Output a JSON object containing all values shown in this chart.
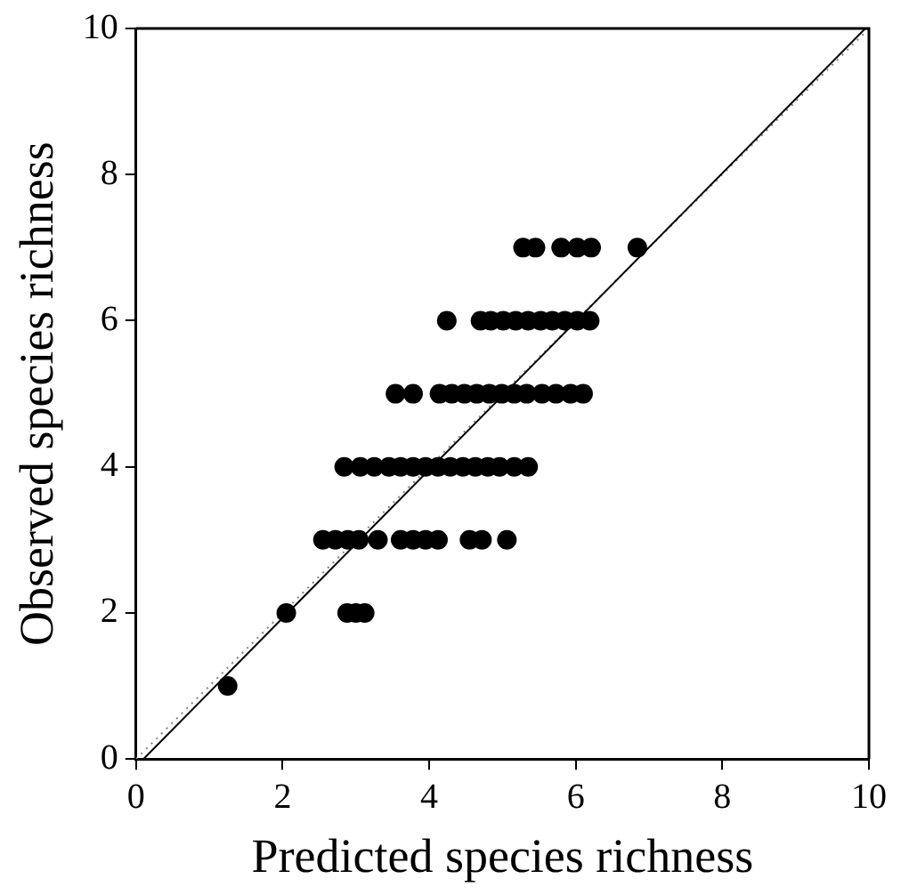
{
  "chart_data": {
    "type": "scatter",
    "xlabel": "Predicted species richness",
    "ylabel": "Observed species richness",
    "xlim": [
      0,
      10
    ],
    "ylim": [
      0,
      10
    ],
    "xticks": [
      0,
      2,
      4,
      6,
      8,
      10
    ],
    "yticks": [
      0,
      2,
      4,
      6,
      8,
      10
    ],
    "grid": false,
    "legend": false,
    "marker": "circle",
    "series": [
      {
        "color": "#000000",
        "x": [
          1.25,
          2.05,
          2.88,
          3.0,
          3.12,
          2.55,
          2.72,
          2.89,
          3.04,
          3.3,
          3.61,
          3.78,
          3.95,
          4.12,
          4.55,
          4.72,
          5.06,
          2.84,
          3.06,
          3.25,
          3.45,
          3.61,
          3.78,
          3.95,
          4.12,
          4.29,
          4.46,
          4.63,
          4.8,
          4.96,
          5.16,
          5.35,
          3.54,
          3.78,
          4.14,
          4.31,
          4.48,
          4.65,
          4.82,
          4.99,
          5.16,
          5.33,
          5.54,
          5.73,
          5.93,
          6.1,
          4.24,
          4.7,
          4.84,
          5.01,
          5.18,
          5.35,
          5.52,
          5.68,
          5.85,
          6.02,
          6.19,
          5.28,
          5.45,
          5.8,
          6.02,
          6.21,
          6.84
        ],
        "values": [
          1,
          2,
          2,
          2,
          2,
          3,
          3,
          3,
          3,
          3,
          3,
          3,
          3,
          3,
          3,
          3,
          3,
          4,
          4,
          4,
          4,
          4,
          4,
          4,
          4,
          4,
          4,
          4,
          4,
          4,
          4,
          4,
          5,
          5,
          5,
          5,
          5,
          5,
          5,
          5,
          5,
          5,
          5,
          5,
          5,
          5,
          6,
          6,
          6,
          6,
          6,
          6,
          6,
          6,
          6,
          6,
          6,
          7,
          7,
          7,
          7,
          7,
          7
        ]
      },
      {
        "type": "line",
        "color": "#000000",
        "x": [
          0.1,
          9.95
        ],
        "values": [
          0,
          10
        ],
        "marker": "none",
        "line_style": "solid"
      },
      {
        "type": "line",
        "color": "#808080",
        "x": [
          0,
          10
        ],
        "values": [
          0,
          10
        ],
        "marker": "none",
        "line_style": "dotted"
      }
    ]
  }
}
